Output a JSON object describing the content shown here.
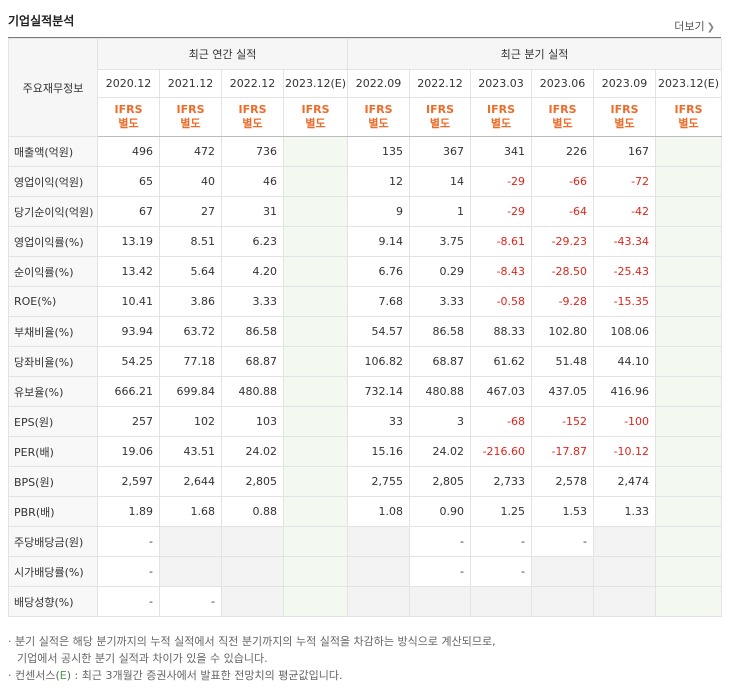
{
  "header": {
    "title": "기업실적분석",
    "more_label": "더보기",
    "more_icon": "chevron-right"
  },
  "table": {
    "corner_label": "주요재무정보",
    "annual_group": "최근 연간 실적",
    "quarter_group": "최근 분기 실적",
    "annual_periods": [
      "2020.12",
      "2021.12",
      "2022.12",
      "2023.12(E)"
    ],
    "quarter_periods": [
      "2022.09",
      "2022.12",
      "2023.03",
      "2023.06",
      "2023.09",
      "2023.12(E)"
    ],
    "standard_line1": "IFRS",
    "standard_line2": "별도",
    "rows": [
      {
        "label": "매출액(억원)",
        "values": [
          "496",
          "472",
          "736",
          "",
          "135",
          "367",
          "341",
          "226",
          "167",
          ""
        ]
      },
      {
        "label": "영업이익(억원)",
        "values": [
          "65",
          "40",
          "46",
          "",
          "12",
          "14",
          "-29",
          "-66",
          "-72",
          ""
        ]
      },
      {
        "label": "당기순이익(억원)",
        "values": [
          "67",
          "27",
          "31",
          "",
          "9",
          "1",
          "-29",
          "-64",
          "-42",
          ""
        ]
      },
      {
        "label": "영업이익률(%)",
        "values": [
          "13.19",
          "8.51",
          "6.23",
          "",
          "9.14",
          "3.75",
          "-8.61",
          "-29.23",
          "-43.34",
          ""
        ]
      },
      {
        "label": "순이익률(%)",
        "values": [
          "13.42",
          "5.64",
          "4.20",
          "",
          "6.76",
          "0.29",
          "-8.43",
          "-28.50",
          "-25.43",
          ""
        ]
      },
      {
        "label": "ROE(%)",
        "values": [
          "10.41",
          "3.86",
          "3.33",
          "",
          "7.68",
          "3.33",
          "-0.58",
          "-9.28",
          "-15.35",
          ""
        ]
      },
      {
        "label": "부채비율(%)",
        "values": [
          "93.94",
          "63.72",
          "86.58",
          "",
          "54.57",
          "86.58",
          "88.33",
          "102.80",
          "108.06",
          ""
        ]
      },
      {
        "label": "당좌비율(%)",
        "values": [
          "54.25",
          "77.18",
          "68.87",
          "",
          "106.82",
          "68.87",
          "61.62",
          "51.48",
          "44.10",
          ""
        ]
      },
      {
        "label": "유보율(%)",
        "values": [
          "666.21",
          "699.84",
          "480.88",
          "",
          "732.14",
          "480.88",
          "467.03",
          "437.05",
          "416.96",
          ""
        ]
      },
      {
        "label": "EPS(원)",
        "values": [
          "257",
          "102",
          "103",
          "",
          "33",
          "3",
          "-68",
          "-152",
          "-100",
          ""
        ]
      },
      {
        "label": "PER(배)",
        "values": [
          "19.06",
          "43.51",
          "24.02",
          "",
          "15.16",
          "24.02",
          "-216.60",
          "-17.87",
          "-10.12",
          ""
        ]
      },
      {
        "label": "BPS(원)",
        "values": [
          "2,597",
          "2,644",
          "2,805",
          "",
          "2,755",
          "2,805",
          "2,733",
          "2,578",
          "2,474",
          ""
        ]
      },
      {
        "label": "PBR(배)",
        "values": [
          "1.89",
          "1.68",
          "0.88",
          "",
          "1.08",
          "0.90",
          "1.25",
          "1.53",
          "1.33",
          ""
        ]
      },
      {
        "label": "주당배당금(원)",
        "values": [
          "-",
          "",
          "",
          "",
          "",
          "-",
          "-",
          "-",
          "",
          ""
        ]
      },
      {
        "label": "시가배당률(%)",
        "values": [
          "-",
          "",
          "",
          "",
          "",
          "-",
          "-",
          "",
          "",
          ""
        ]
      },
      {
        "label": "배당성향(%)",
        "values": [
          "-",
          "-",
          "",
          "",
          "",
          "",
          "",
          "",
          "",
          ""
        ]
      }
    ]
  },
  "notes": {
    "line1": "· 분기 실적은 해당 분기까지의 누적 실적에서 직전 분기까지의 누적 실적을 차감하는 방식으로 계산되므로,",
    "line2": "기업에서 공시한 분기 실적과 차이가 있을 수 있습니다.",
    "line3_prefix": "· 컨센서스(",
    "line3_e": "E",
    "line3_suffix": ") : 최근 3개월간 증권사에서 발표한 전망치의 평균값입니다."
  },
  "colors": {
    "negative": "#e0251b",
    "ifrs": "#ee6c2a",
    "estimate_bg": "#f3f9f1"
  }
}
